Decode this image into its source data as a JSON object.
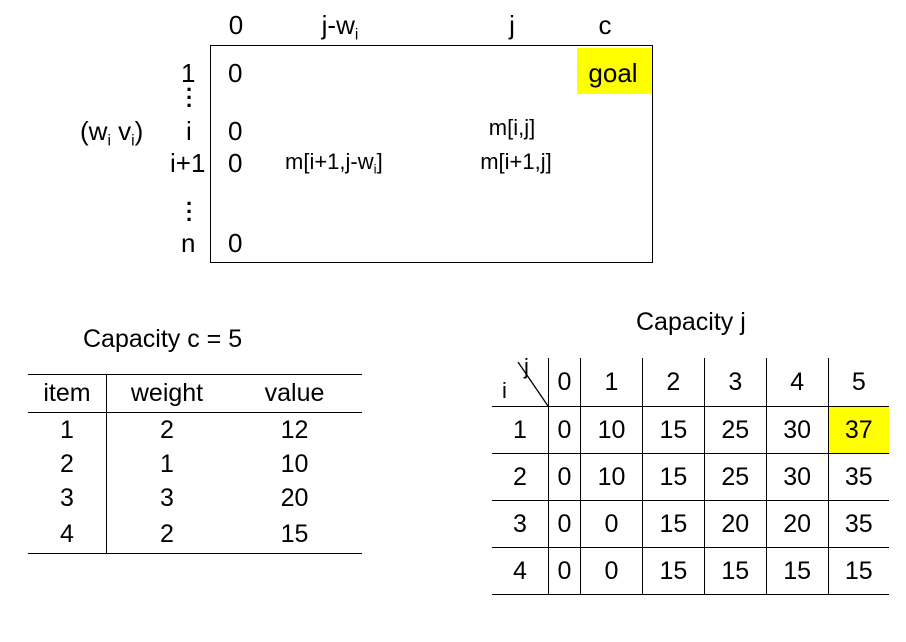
{
  "dp_diagram": {
    "col_labels": {
      "zero": "0",
      "j_minus_w_base": "j-w",
      "j_minus_w_sub": "i",
      "j": "j",
      "c": "c"
    },
    "row_labels": {
      "one": "1",
      "i": "i",
      "i_plus_1": "i+1",
      "n": "n"
    },
    "item_label": {
      "open": "(w",
      "w_sub": "i",
      "v": " v",
      "v_sub": "i",
      "close": ")"
    },
    "zeros": [
      "0",
      "0",
      "0",
      "0"
    ],
    "goal": "goal",
    "cells": {
      "m_i_j": "m[i,j]",
      "m_i1_jw_base": "m[i+1,j-w",
      "m_i1_jw_sub": "i",
      "m_i1_jw_close": "]",
      "m_i1_j": "m[i+1,j]"
    }
  },
  "items_panel": {
    "title": "Capacity  c = 5",
    "headers": [
      "item",
      "weight",
      "value"
    ],
    "rows": [
      [
        "1",
        "2",
        "12"
      ],
      [
        "2",
        "1",
        "10"
      ],
      [
        "3",
        "3",
        "20"
      ],
      [
        "4",
        "2",
        "15"
      ]
    ]
  },
  "dp_table": {
    "title": "Capacity  j",
    "corner_j": "j",
    "corner_i": "i",
    "columns": [
      "0",
      "1",
      "2",
      "3",
      "4",
      "5"
    ],
    "rows": [
      {
        "i": "1",
        "values": [
          "0",
          "10",
          "15",
          "25",
          "30",
          "37"
        ]
      },
      {
        "i": "2",
        "values": [
          "0",
          "10",
          "15",
          "25",
          "30",
          "35"
        ]
      },
      {
        "i": "3",
        "values": [
          "0",
          "0",
          "15",
          "20",
          "20",
          "35"
        ]
      },
      {
        "i": "4",
        "values": [
          "0",
          "0",
          "15",
          "15",
          "15",
          "15"
        ]
      }
    ],
    "highlight_color": "#ffff00"
  }
}
